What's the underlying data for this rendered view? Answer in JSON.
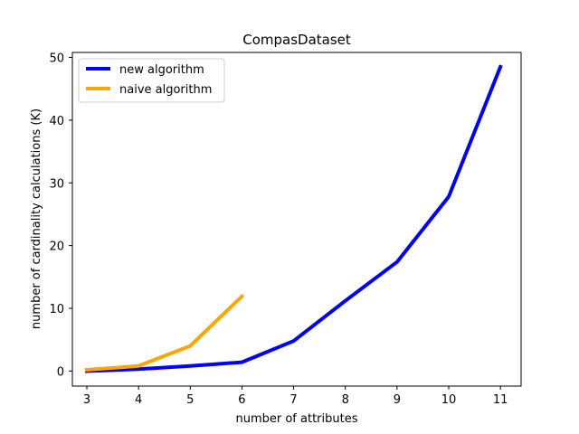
{
  "chart_data": {
    "type": "line",
    "title": "CompasDataset",
    "xlabel": "number of attributes",
    "ylabel": "number of cardinality calculations (K)",
    "xlim": [
      2.72,
      11.4
    ],
    "ylim": [
      -2.4,
      50.8
    ],
    "xticks": [
      3,
      4,
      5,
      6,
      7,
      8,
      9,
      10,
      11
    ],
    "yticks": [
      0,
      10,
      20,
      30,
      40,
      50
    ],
    "legend": "upper-left",
    "grid": false,
    "series": [
      {
        "name": "new algorithm",
        "color": "#0000ff",
        "x": [
          3,
          4,
          5,
          6,
          7,
          8,
          9,
          10,
          11
        ],
        "y": [
          0.0,
          0.3,
          0.8,
          1.4,
          4.8,
          11.2,
          17.4,
          27.8,
          48.5
        ]
      },
      {
        "name": "naive algorithm",
        "color": "#ffa500",
        "x": [
          3,
          4,
          5,
          6
        ],
        "y": [
          0.2,
          0.8,
          4.0,
          11.9
        ]
      }
    ]
  }
}
